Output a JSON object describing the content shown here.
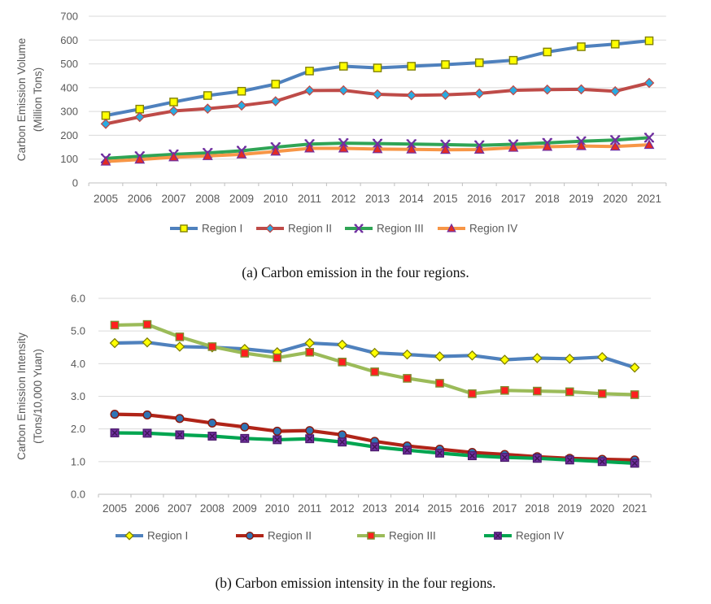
{
  "figure": {
    "background": "#ffffff",
    "text_color": "#595959",
    "grid_color": "#dadada",
    "axis_color": "#bfbfbf"
  },
  "chart_data": [
    {
      "panel": "a",
      "type": "line",
      "caption": "(a) Carbon emission in the four regions.",
      "ylabel_lines": [
        "Carbon Emission Volume",
        "(Million Tons)"
      ],
      "x": [
        "2005",
        "2006",
        "2007",
        "2008",
        "2009",
        "2010",
        "2011",
        "2012",
        "2013",
        "2014",
        "2015",
        "2016",
        "2017",
        "2018",
        "2019",
        "2020",
        "2021"
      ],
      "ylim": [
        0,
        700
      ],
      "ytick_step": 100,
      "ytick_labels": [
        "0",
        "100",
        "200",
        "300",
        "400",
        "500",
        "600",
        "700"
      ],
      "grid": true,
      "legend_position": "bottom",
      "series": [
        {
          "name": "Region I",
          "line_color": "#4f81bd",
          "marker": "square",
          "marker_fill": "#ffff00",
          "marker_stroke": "#808000",
          "values": [
            283,
            310,
            340,
            367,
            385,
            415,
            470,
            490,
            483,
            490,
            497,
            505,
            515,
            550,
            572,
            583,
            597
          ]
        },
        {
          "name": "Region II",
          "line_color": "#be4b48",
          "marker": "diamond",
          "marker_fill": "#29abe2",
          "marker_stroke": "#be4b48",
          "values": [
            248,
            277,
            302,
            312,
            325,
            343,
            388,
            389,
            372,
            368,
            370,
            376,
            389,
            392,
            393,
            385,
            420
          ]
        },
        {
          "name": "Region III",
          "line_color": "#2fa455",
          "marker": "x",
          "marker_fill": "#7030a0",
          "marker_stroke": "#7030a0",
          "values": [
            103,
            112,
            120,
            126,
            135,
            150,
            163,
            167,
            165,
            163,
            161,
            158,
            162,
            168,
            175,
            180,
            190
          ]
        },
        {
          "name": "Region IV",
          "line_color": "#f79646",
          "marker": "triangle",
          "marker_fill": "#e32b24",
          "marker_stroke": "#7030a0",
          "values": [
            90,
            98,
            108,
            113,
            120,
            132,
            145,
            145,
            142,
            141,
            139,
            140,
            148,
            152,
            155,
            153,
            160
          ]
        }
      ]
    },
    {
      "panel": "b",
      "type": "line",
      "caption": "(b) Carbon emission intensity in the four regions.",
      "ylabel_lines": [
        "Carbon Emission Intensity",
        "(Tons/10,000 Yuan)"
      ],
      "x": [
        "2005",
        "2006",
        "2007",
        "2008",
        "2009",
        "2010",
        "2011",
        "2012",
        "2013",
        "2014",
        "2015",
        "2016",
        "2017",
        "2018",
        "2019",
        "2020",
        "2021"
      ],
      "ylim": [
        0,
        6
      ],
      "ytick_step": 1,
      "ytick_labels": [
        "0.0",
        "1.0",
        "2.0",
        "3.0",
        "4.0",
        "5.0",
        "6.0"
      ],
      "grid": true,
      "legend_position": "bottom",
      "series": [
        {
          "name": "Region I",
          "line_color": "#4f81bd",
          "marker": "diamond",
          "marker_fill": "#ffff00",
          "marker_stroke": "#808000",
          "values": [
            4.63,
            4.65,
            4.52,
            4.5,
            4.45,
            4.35,
            4.63,
            4.58,
            4.33,
            4.28,
            4.22,
            4.25,
            4.12,
            4.17,
            4.15,
            4.2,
            3.88
          ]
        },
        {
          "name": "Region II",
          "line_color": "#b02418",
          "marker": "circle",
          "marker_fill": "#2e75b6",
          "marker_stroke": "#8b1a10",
          "values": [
            2.45,
            2.43,
            2.32,
            2.18,
            2.06,
            1.93,
            1.95,
            1.82,
            1.62,
            1.48,
            1.38,
            1.28,
            1.22,
            1.15,
            1.1,
            1.07,
            1.05
          ]
        },
        {
          "name": "Region III",
          "line_color": "#9bbb59",
          "marker": "square",
          "marker_fill": "#ff1f1f",
          "marker_stroke": "#7e8c2f",
          "values": [
            5.18,
            5.2,
            4.82,
            4.52,
            4.32,
            4.18,
            4.35,
            4.05,
            3.75,
            3.55,
            3.4,
            3.08,
            3.18,
            3.16,
            3.14,
            3.08,
            3.05
          ]
        },
        {
          "name": "Region IV",
          "line_color": "#00a550",
          "marker": "square-x",
          "marker_fill": "#7030a0",
          "marker_stroke": "#4a1a6b",
          "values": [
            1.88,
            1.87,
            1.82,
            1.78,
            1.71,
            1.67,
            1.7,
            1.6,
            1.45,
            1.35,
            1.26,
            1.18,
            1.13,
            1.1,
            1.05,
            1.0,
            0.95
          ]
        }
      ]
    }
  ]
}
